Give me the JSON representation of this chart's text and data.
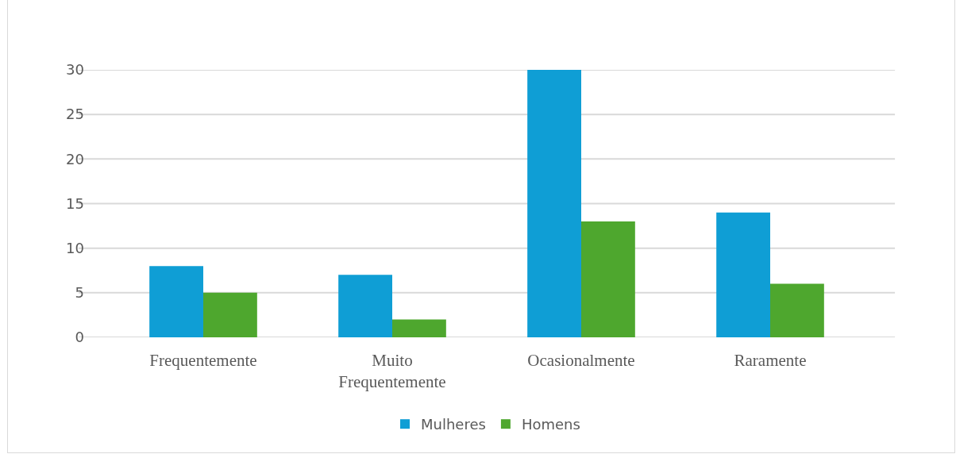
{
  "chart_data": {
    "type": "bar",
    "categories": [
      "Frequentemente",
      "Muito Frequentemente",
      "Ocasionalmente",
      "Raramente"
    ],
    "series": [
      {
        "name": "Mulheres",
        "color": "#0f9ed5",
        "values": [
          8,
          7,
          30,
          14
        ]
      },
      {
        "name": "Homens",
        "color": "#4ea72e",
        "values": [
          5,
          2,
          13,
          6
        ]
      }
    ],
    "ylim": [
      0,
      30
    ],
    "yticks": [
      0,
      5,
      10,
      15,
      20,
      25,
      30
    ],
    "grid": "y",
    "legend": "bottom"
  }
}
